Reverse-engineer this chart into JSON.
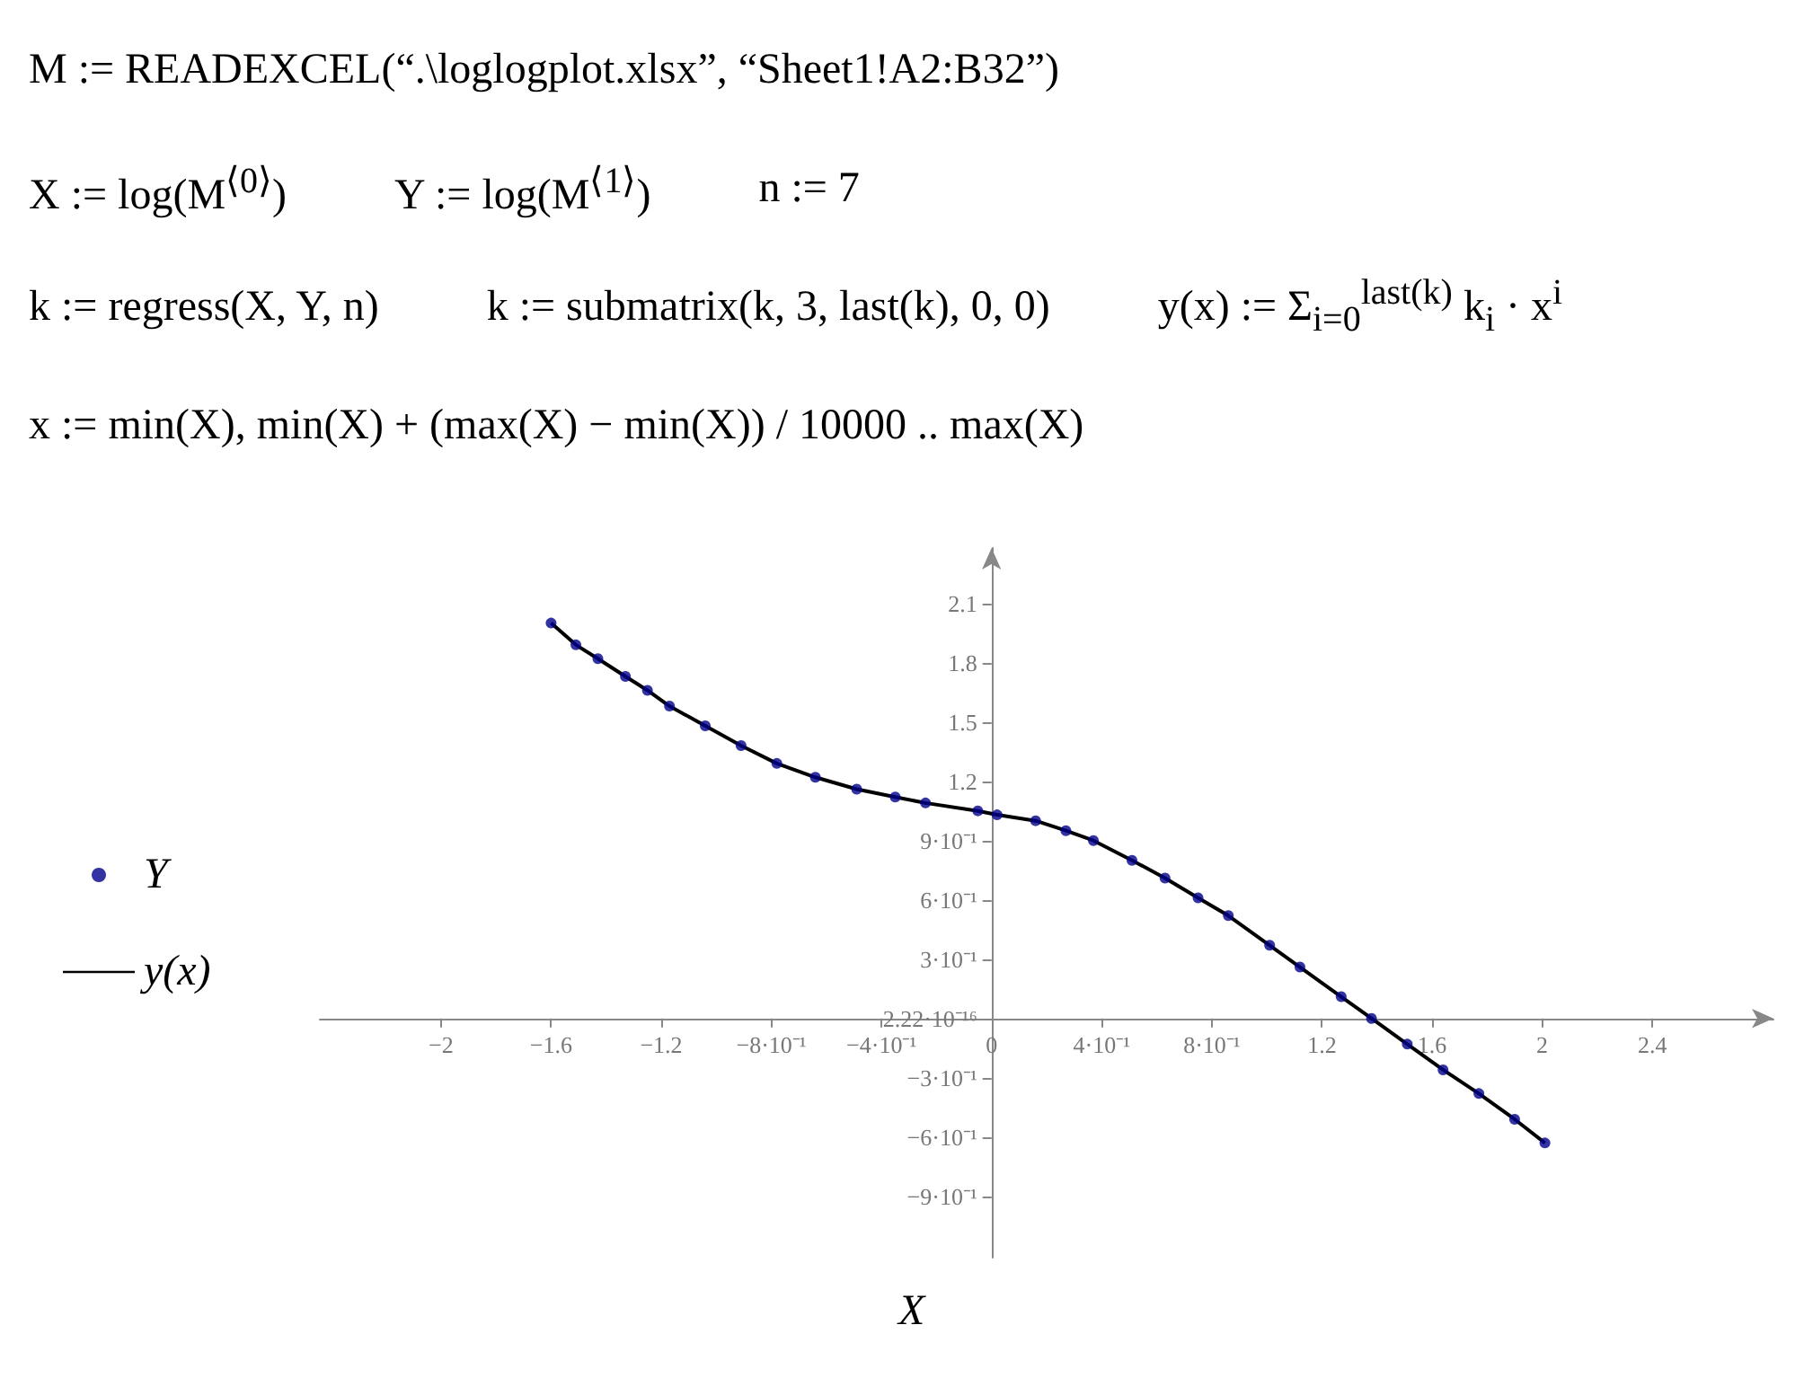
{
  "chart_data": {
    "type": "scatter",
    "annotations": [
      "M := READEXCEL(“.\\loglogplot.xlsx”, “Sheet1!A2:B32”)",
      "X := log(M$^{⟨0⟩}$)",
      "Y := log(M$^{⟨1⟩}$)",
      "n := 7",
      "k := regress(X, Y, n)",
      "k := submatrix(k, 3, last(k), 0, 0)",
      "y(x) := Σ$_{i=0}$$^{last(k)}$ k$_{i}$ · x$^{i}$",
      "x := min(X), min(X) + (max(X) − min(X)) / 10000 .. max(X)"
    ],
    "xlabel": "X",
    "x": [
      -1.6,
      -1.51,
      -1.43,
      -1.33,
      -1.25,
      -1.17,
      -1.04,
      -0.91,
      -0.78,
      -0.64,
      -0.49,
      -0.35,
      -0.24,
      -0.05,
      0.02,
      0.16,
      0.27,
      0.37,
      0.51,
      0.63,
      0.75,
      0.86,
      1.01,
      1.12,
      1.27,
      1.38,
      1.51,
      1.64,
      1.77,
      1.9,
      2.01
    ],
    "series": [
      {
        "name": "Y",
        "color": "#00008b",
        "marker": "circle",
        "values": [
          2,
          1.89,
          1.82,
          1.73,
          1.66,
          1.58,
          1.48,
          1.38,
          1.29,
          1.22,
          1.16,
          1.12,
          1.09,
          1.05,
          1.03,
          1,
          0.95,
          0.9,
          0.8,
          0.71,
          0.61,
          0.52,
          0.37,
          0.26,
          0.11,
          0,
          -0.13,
          -0.26,
          -0.38,
          -0.51,
          -0.63
        ]
      },
      {
        "name": "y(x)",
        "type": "line",
        "color": "#000000",
        "marker": "none",
        "line_style": "solid",
        "values": [
          2,
          1.89,
          1.82,
          1.73,
          1.66,
          1.58,
          1.48,
          1.38,
          1.29,
          1.22,
          1.16,
          1.12,
          1.09,
          1.05,
          1.03,
          1,
          0.95,
          0.9,
          0.8,
          0.71,
          0.61,
          0.52,
          0.37,
          0.26,
          0.11,
          0,
          -0.13,
          -0.26,
          -0.38,
          -0.51,
          -0.63
        ]
      }
    ],
    "xlim": [
      -2.44,
      2.84
    ],
    "xticks": [
      -2,
      -1.6,
      -1.2,
      {
        "value": -0.8,
        "label": "−8·10⁻¹"
      },
      {
        "value": -0.4,
        "label": "−4·10⁻¹"
      },
      0,
      {
        "value": 0.4,
        "label": "4·10⁻¹"
      },
      {
        "value": 0.8,
        "label": "8·10⁻¹"
      },
      1.2,
      1.6,
      2,
      2.4
    ],
    "ylim": [
      -1.21,
      2.38
    ],
    "yticks": [
      {
        "value": -0.9,
        "label": "−9·10⁻¹"
      },
      {
        "value": -0.6,
        "label": "−6·10⁻¹"
      },
      {
        "value": -0.3,
        "label": "−3·10⁻¹"
      },
      {
        "value": 0,
        "label": "2.22·10⁻¹⁶"
      },
      {
        "value": 0.3,
        "label": "3·10⁻¹"
      },
      {
        "value": 0.6,
        "label": "6·10⁻¹"
      },
      {
        "value": 0.9,
        "label": "9·10⁻¹"
      },
      1.2,
      1.5,
      1.8,
      2.1
    ],
    "legend": "left"
  }
}
